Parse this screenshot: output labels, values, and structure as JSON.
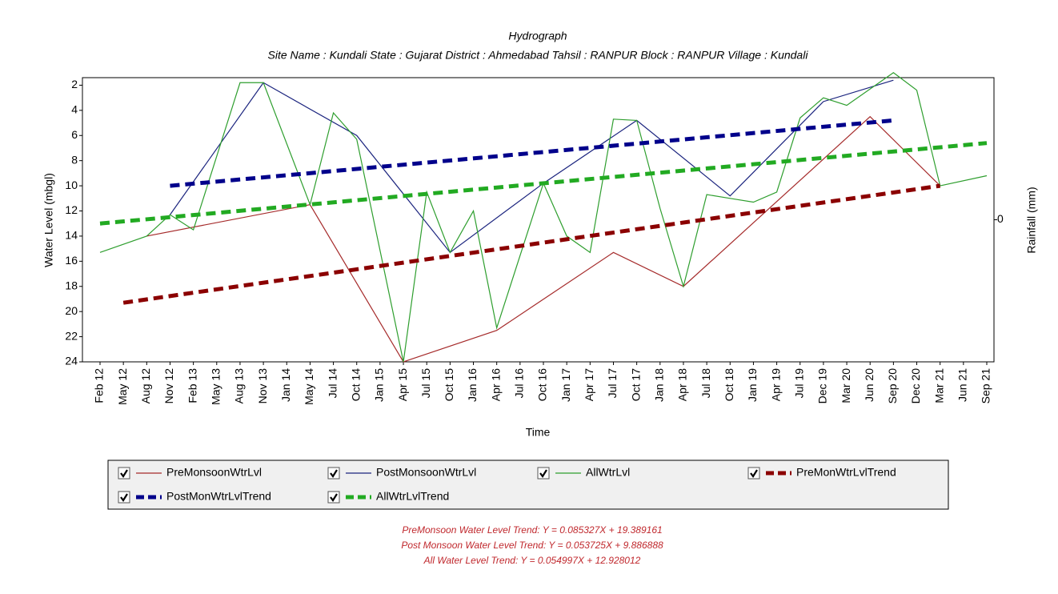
{
  "chart_data": {
    "type": "line",
    "title": "Hydrograph",
    "subtitle": "Site Name : Kundali  State : Gujarat District : Ahmedabad  Tahsil : RANPUR  Block : RANPUR Village : Kundali",
    "x_label": "Time",
    "y_label": "Water Level (mbgl)",
    "y2_label": "Rainfall (mm)",
    "y_inverted": true,
    "ylim": [
      1.4,
      24
    ],
    "yticks": [
      2,
      4,
      6,
      8,
      10,
      12,
      14,
      16,
      18,
      20,
      22,
      24
    ],
    "y2lim": [
      -1,
      1
    ],
    "y2ticks": [
      0
    ],
    "categories": [
      "Feb 12",
      "May 12",
      "Aug 12",
      "Nov 12",
      "Feb 13",
      "May 13",
      "Aug 13",
      "Nov 13",
      "Jan 14",
      "May 14",
      "Jul 14",
      "Oct 14",
      "Jan 15",
      "Apr 15",
      "Jul 15",
      "Oct 15",
      "Jan 16",
      "Apr 16",
      "Jul 16",
      "Oct 16",
      "Jan 17",
      "Apr 17",
      "Jul 17",
      "Oct 17",
      "Jan 18",
      "Apr 18",
      "Jul 18",
      "Oct 18",
      "Jan 19",
      "Apr 19",
      "Jul 19",
      "Dec 19",
      "Mar 20",
      "Jun 20",
      "Sep 20",
      "Dec 20",
      "Mar 21",
      "Jun 21",
      "Sep 21"
    ],
    "series": [
      {
        "name": "PreMonsoonWtrLvl",
        "color": "#a52a2a",
        "dashed": false,
        "x": [
          "Aug 12",
          "May 14",
          "Apr 15",
          "Apr 16",
          "Jul 17",
          "Apr 18",
          "Jun 20",
          "Mar 21"
        ],
        "values": [
          14,
          11.5,
          24,
          21.5,
          15.3,
          18,
          4.5,
          10
        ]
      },
      {
        "name": "PostMonsoonWtrLvl",
        "color": "#1a237e",
        "dashed": false,
        "x": [
          "Nov 12",
          "Nov 13",
          "Oct 14",
          "Oct 15",
          "Oct 16",
          "Oct 17",
          "Oct 18",
          "Dec 19",
          "Sep 20"
        ],
        "values": [
          12.3,
          1.8,
          6,
          15.3,
          9.8,
          4.8,
          10.8,
          3.3,
          1.6
        ]
      },
      {
        "name": "AllWtrLvl",
        "color": "#2e9e2e",
        "dashed": false,
        "x": [
          "Feb 12",
          "Aug 12",
          "Nov 12",
          "Feb 13",
          "Aug 13",
          "Nov 13",
          "May 14",
          "Jul 14",
          "Oct 14",
          "Apr 15",
          "Jul 15",
          "Oct 15",
          "Jan 16",
          "Apr 16",
          "Oct 16",
          "Jan 17",
          "Apr 17",
          "Jul 17",
          "Oct 17",
          "Jan 18",
          "Apr 18",
          "Jul 18",
          "Oct 18",
          "Jan 19",
          "Apr 19",
          "Jul 19",
          "Dec 19",
          "Mar 20",
          "Sep 20",
          "Dec 20",
          "Mar 21",
          "Sep 21"
        ],
        "values": [
          15.3,
          14,
          12.3,
          13.5,
          1.8,
          1.8,
          11.5,
          4.2,
          6.3,
          24,
          10.5,
          15.3,
          12,
          21.3,
          9.8,
          14,
          15.3,
          4.7,
          4.8,
          11.8,
          18,
          10.7,
          11,
          11.3,
          10.5,
          4.6,
          3,
          3.6,
          1,
          2.4,
          10,
          9.2
        ]
      },
      {
        "name": "PreMonWtrLvlTrend",
        "color": "#8b0000",
        "dashed": true,
        "x": [
          "May 12",
          "Mar 21"
        ],
        "values": [
          19.3,
          10
        ]
      },
      {
        "name": "PostMonWtrLvlTrend",
        "color": "#00008b",
        "dashed": true,
        "x": [
          "Nov 12",
          "Sep 20"
        ],
        "values": [
          10,
          4.8
        ]
      },
      {
        "name": "AllWtrLvlTrend",
        "color": "#22aa22",
        "dashed": true,
        "x": [
          "Feb 12",
          "Sep 21"
        ],
        "values": [
          13,
          6.6
        ]
      }
    ],
    "annotations": [
      "PreMonsoon Water Level Trend: Y = 0.085327X + 19.389161",
      "Post Monsoon Water Level Trend: Y = 0.053725X + 9.886888",
      "All Water Level Trend: Y = 0.054997X + 12.928012"
    ]
  }
}
